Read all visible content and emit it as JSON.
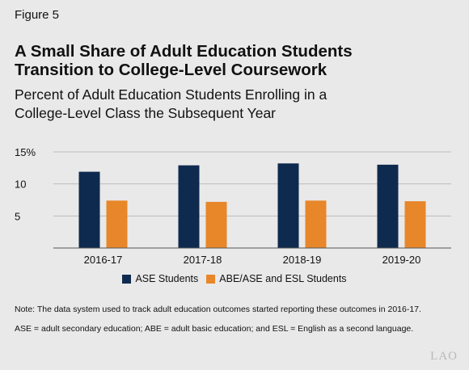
{
  "figure_label": "Figure 5",
  "title_lines": [
    "A Small Share of Adult Education Students",
    "Transition to College-Level Coursework"
  ],
  "subtitle_lines": [
    "Percent of Adult Education Students Enrolling in a",
    "College-Level Class the Subsequent Year"
  ],
  "notes": [
    "Note: The data system used to track adult education outcomes started reporting these outcomes in 2016-17.",
    "ASE = adult secondary education; ABE = adult basic education; and ESL = English as a second language."
  ],
  "logo_text": "LAO",
  "chart_data": {
    "type": "bar",
    "categories": [
      "2016-17",
      "2017-18",
      "2018-19",
      "2019-20"
    ],
    "series": [
      {
        "name": "ASE Students",
        "color": "#0f2a4f",
        "values": [
          11.9,
          12.9,
          13.2,
          13.0
        ]
      },
      {
        "name": "ABE/ASE and ESL Students",
        "color": "#e8862a",
        "values": [
          7.4,
          7.2,
          7.4,
          7.3
        ]
      }
    ],
    "yticks": [
      {
        "value": 5,
        "label": "5"
      },
      {
        "value": 10,
        "label": "10"
      },
      {
        "value": 15,
        "label": "15%"
      }
    ],
    "ylim": [
      0,
      15
    ],
    "grid": true,
    "legend_position": "bottom"
  }
}
